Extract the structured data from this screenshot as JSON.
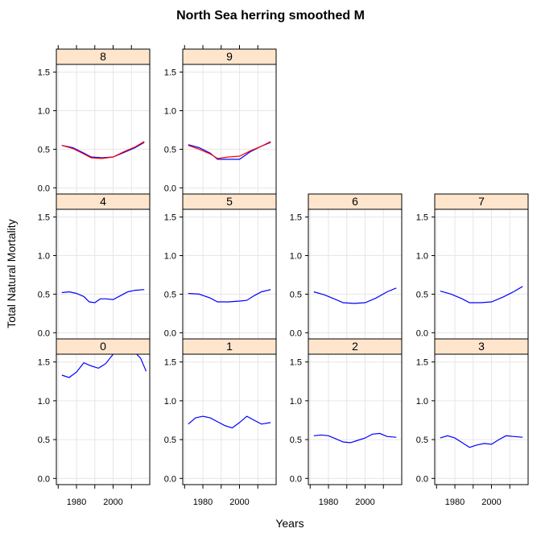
{
  "chart_data": {
    "type": "line",
    "title": "North Sea herring smoothed M",
    "xlabel": "Years",
    "ylabel": "Total Natural Mortality",
    "xlim": [
      1969,
      2020
    ],
    "ylim": [
      -0.08,
      1.6
    ],
    "x_ticks": [
      1980,
      2000
    ],
    "x_tick_labels": [
      "1980",
      "2000"
    ],
    "y_ticks": [
      0.0,
      0.5,
      1.0,
      1.5
    ],
    "y_tick_labels": [
      "0.0",
      "0.5",
      "1.0",
      "1.5"
    ],
    "strip_color": "#ffe5cc",
    "series_colors": [
      "#0000ff",
      "#ff0000"
    ],
    "grid": true,
    "layout": "4 columns x 3 rows (lattice); ages 8-9 top row, 4-7 middle row, 0-3 bottom row",
    "panels": [
      {
        "label": "8",
        "x": [
          1972,
          1978,
          1984,
          1988,
          1994,
          2000,
          2006,
          2012,
          2017
        ],
        "series": [
          {
            "values": [
              0.55,
              0.52,
              0.45,
              0.4,
              0.39,
              0.4,
              0.46,
              0.52,
              0.59
            ]
          },
          {
            "values": [
              0.55,
              0.51,
              0.44,
              0.39,
              0.38,
              0.4,
              0.47,
              0.53,
              0.6
            ]
          }
        ]
      },
      {
        "label": "9",
        "x": [
          1972,
          1978,
          1984,
          1988,
          1994,
          2000,
          2006,
          2012,
          2017
        ],
        "series": [
          {
            "values": [
              0.56,
              0.52,
              0.45,
              0.37,
              0.37,
              0.37,
              0.47,
              0.54,
              0.59
            ]
          },
          {
            "values": [
              0.55,
              0.5,
              0.44,
              0.38,
              0.4,
              0.41,
              0.48,
              0.54,
              0.6
            ]
          }
        ]
      },
      {
        "label": "4",
        "x": [
          1972,
          1976,
          1980,
          1984,
          1987,
          1990,
          1993,
          1996,
          2000,
          2004,
          2008,
          2012,
          2017
        ],
        "series": [
          {
            "values": [
              0.52,
              0.53,
              0.51,
              0.47,
              0.4,
              0.39,
              0.44,
              0.44,
              0.43,
              0.48,
              0.53,
              0.55,
              0.56
            ]
          }
        ]
      },
      {
        "label": "5",
        "x": [
          1972,
          1978,
          1984,
          1988,
          1994,
          2000,
          2004,
          2008,
          2012,
          2017
        ],
        "series": [
          {
            "values": [
              0.51,
              0.5,
              0.45,
              0.4,
              0.4,
              0.41,
              0.42,
              0.48,
              0.53,
              0.56
            ]
          }
        ]
      },
      {
        "label": "6",
        "x": [
          1972,
          1978,
          1984,
          1988,
          1994,
          2000,
          2006,
          2012,
          2017
        ],
        "series": [
          {
            "values": [
              0.53,
              0.49,
              0.43,
              0.39,
              0.38,
              0.39,
              0.45,
              0.53,
              0.58
            ]
          }
        ]
      },
      {
        "label": "7",
        "x": [
          1972,
          1978,
          1984,
          1988,
          1994,
          2000,
          2006,
          2012,
          2017
        ],
        "series": [
          {
            "values": [
              0.54,
              0.5,
              0.44,
              0.39,
              0.39,
              0.4,
              0.46,
              0.53,
              0.6
            ]
          }
        ]
      },
      {
        "label": "0",
        "x": [
          1972,
          1976,
          1980,
          1984,
          1988,
          1992,
          1996,
          2000,
          2004,
          2008,
          2012,
          2015,
          2018
        ],
        "series": [
          {
            "values": [
              1.33,
              1.3,
              1.37,
              1.49,
              1.45,
              1.42,
              1.48,
              1.6,
              1.62,
              1.62,
              1.62,
              1.55,
              1.38
            ]
          }
        ]
      },
      {
        "label": "1",
        "x": [
          1972,
          1976,
          1980,
          1984,
          1988,
          1992,
          1996,
          2000,
          2004,
          2008,
          2012,
          2017
        ],
        "series": [
          {
            "values": [
              0.7,
              0.78,
              0.8,
              0.78,
              0.73,
              0.68,
              0.65,
              0.72,
              0.8,
              0.75,
              0.7,
              0.72
            ]
          }
        ]
      },
      {
        "label": "2",
        "x": [
          1972,
          1976,
          1980,
          1984,
          1988,
          1992,
          1996,
          2000,
          2004,
          2008,
          2012,
          2017
        ],
        "series": [
          {
            "values": [
              0.55,
              0.56,
              0.55,
              0.51,
              0.47,
              0.46,
              0.49,
              0.52,
              0.57,
              0.58,
              0.54,
              0.53
            ]
          }
        ]
      },
      {
        "label": "3",
        "x": [
          1972,
          1976,
          1980,
          1984,
          1988,
          1992,
          1996,
          2000,
          2004,
          2008,
          2012,
          2017
        ],
        "series": [
          {
            "values": [
              0.52,
              0.55,
              0.52,
              0.46,
              0.4,
              0.43,
              0.45,
              0.44,
              0.5,
              0.55,
              0.54,
              0.53
            ]
          }
        ]
      }
    ]
  }
}
